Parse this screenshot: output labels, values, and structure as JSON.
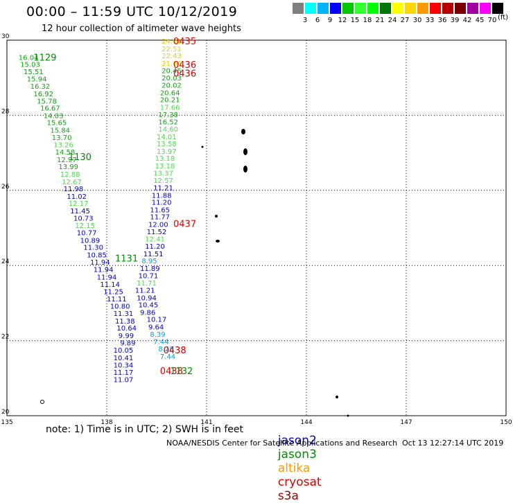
{
  "header": {
    "title": "00:00 – 11:59 UTC 10/12/2019",
    "subtitle": "12 hour collection of altimeter wave heights"
  },
  "scale": {
    "unit": "(ft)",
    "items": [
      {
        "color": "#7f7f7f",
        "label": ""
      },
      {
        "color": "#00ffff",
        "label": "3"
      },
      {
        "color": "#00b4ff",
        "label": "6"
      },
      {
        "color": "#0000ff",
        "label": "9"
      },
      {
        "color": "#00c800",
        "label": "12"
      },
      {
        "color": "#32ff32",
        "label": "15"
      },
      {
        "color": "#00ff00",
        "label": "18"
      },
      {
        "color": "#007800",
        "label": "21"
      },
      {
        "color": "#ffff00",
        "label": "24"
      },
      {
        "color": "#ffd700",
        "label": "27"
      },
      {
        "color": "#ff9900",
        "label": "30"
      },
      {
        "color": "#ff0000",
        "label": "33"
      },
      {
        "color": "#b40000",
        "label": "36"
      },
      {
        "color": "#780000",
        "label": "39"
      },
      {
        "color": "#a000a0",
        "label": "42"
      },
      {
        "color": "#ff00ff",
        "label": "45"
      },
      {
        "color": "#000000",
        "label": "70"
      }
    ]
  },
  "axes": {
    "x_ticks": [
      "135",
      "138",
      "141",
      "144",
      "147",
      "150"
    ],
    "y_ticks": [
      "30",
      "28",
      "26",
      "24",
      "22",
      "20"
    ],
    "x_range": [
      135,
      150
    ],
    "y_range": [
      20,
      30
    ]
  },
  "colors": {
    "jason2": "#0000c8",
    "jason3": "#008c00",
    "altika": "#ff9900",
    "cryosat": "#dc0000",
    "s3a": "#a00000",
    "green_dark": "#14a014",
    "green_light": "#50dc50",
    "yellow": "#e6d200",
    "cyan": "#00a0d2"
  },
  "chart_data": {
    "type": "scatter",
    "footer_note": "note: 1) Time is in UTC; 2) SWH is in feet",
    "legend": [
      "jason2",
      "jason3",
      "altika",
      "cryosat",
      "s3a"
    ],
    "time_labels": [
      {
        "text": "0435",
        "lon": 140.0,
        "lat": 29.98,
        "sat": "cryosat"
      },
      {
        "text": "0436",
        "lon": 140.0,
        "lat": 29.35,
        "sat": "cryosat"
      },
      {
        "text": "0436",
        "lon": 140.0,
        "lat": 29.12,
        "sat": "cryosat"
      },
      {
        "text": "0437",
        "lon": 140.0,
        "lat": 25.12,
        "sat": "cryosat"
      },
      {
        "text": "0438",
        "lon": 139.7,
        "lat": 21.75,
        "sat": "cryosat"
      },
      {
        "text": "0438",
        "lon": 139.6,
        "lat": 21.2,
        "sat": "cryosat"
      },
      {
        "text": "1129",
        "lon": 135.8,
        "lat": 29.55,
        "sat": "jason3"
      },
      {
        "text": "1130",
        "lon": 136.85,
        "lat": 26.9,
        "sat": "jason3"
      },
      {
        "text": "1131",
        "lon": 138.25,
        "lat": 24.2,
        "sat": "jason3"
      },
      {
        "text": "1132",
        "lon": 139.9,
        "lat": 21.2,
        "sat": "jason3"
      }
    ],
    "west_track": [
      {
        "v": "16.04",
        "c": "green_dark",
        "lon": 135.35,
        "lat": 29.55
      },
      {
        "v": "15.03",
        "c": "green_dark",
        "lon": 135.4,
        "lat": 29.36
      },
      {
        "v": "15.51",
        "c": "green_dark",
        "lon": 135.5,
        "lat": 29.17
      },
      {
        "v": "15.94",
        "c": "green_dark",
        "lon": 135.6,
        "lat": 28.98
      },
      {
        "v": "16.32",
        "c": "green_dark",
        "lon": 135.7,
        "lat": 28.78
      },
      {
        "v": "16.92",
        "c": "green_dark",
        "lon": 135.8,
        "lat": 28.58
      },
      {
        "v": "15.78",
        "c": "green_dark",
        "lon": 135.9,
        "lat": 28.39
      },
      {
        "v": "16.67",
        "c": "green_dark",
        "lon": 136.0,
        "lat": 28.2
      },
      {
        "v": "14.03",
        "c": "green_dark",
        "lon": 136.1,
        "lat": 28.0
      },
      {
        "v": "15.65",
        "c": "green_dark",
        "lon": 136.2,
        "lat": 27.81
      },
      {
        "v": "15.84",
        "c": "green_dark",
        "lon": 136.3,
        "lat": 27.61
      },
      {
        "v": "13.70",
        "c": "green_dark",
        "lon": 136.35,
        "lat": 27.42
      },
      {
        "v": "13.26",
        "c": "green_light",
        "lon": 136.4,
        "lat": 27.22
      },
      {
        "v": "14.58",
        "c": "green_dark",
        "lon": 136.45,
        "lat": 27.03
      },
      {
        "v": "12.97",
        "c": "green_dark",
        "lon": 136.5,
        "lat": 26.83
      },
      {
        "v": "13.99",
        "c": "green_dark",
        "lon": 136.55,
        "lat": 26.64
      },
      {
        "v": "12.88",
        "c": "green_light",
        "lon": 136.6,
        "lat": 26.44
      },
      {
        "v": "12.67",
        "c": "green_light",
        "lon": 136.65,
        "lat": 26.24
      },
      {
        "v": "11.98",
        "c": "jason2",
        "lon": 136.7,
        "lat": 26.05
      },
      {
        "v": "11.02",
        "c": "jason2",
        "lon": 136.8,
        "lat": 25.85
      },
      {
        "v": "12.17",
        "c": "green_light",
        "lon": 136.85,
        "lat": 25.66
      },
      {
        "v": "11.45",
        "c": "jason2",
        "lon": 136.9,
        "lat": 25.46
      },
      {
        "v": "10.73",
        "c": "jason2",
        "lon": 137.0,
        "lat": 25.27
      },
      {
        "v": "12.15",
        "c": "green_light",
        "lon": 137.05,
        "lat": 25.07
      },
      {
        "v": "10.77",
        "c": "jason2",
        "lon": 137.1,
        "lat": 24.88
      },
      {
        "v": "10.89",
        "c": "jason2",
        "lon": 137.2,
        "lat": 24.68
      },
      {
        "v": "11.30",
        "c": "jason2",
        "lon": 137.3,
        "lat": 24.49
      },
      {
        "v": "10.85",
        "c": "jason2",
        "lon": 137.4,
        "lat": 24.29
      },
      {
        "v": "11.94",
        "c": "jason2",
        "lon": 137.5,
        "lat": 24.1
      },
      {
        "v": "11.94",
        "c": "jason2",
        "lon": 137.6,
        "lat": 23.9
      },
      {
        "v": "11.94",
        "c": "jason2",
        "lon": 137.7,
        "lat": 23.7
      },
      {
        "v": "11.14",
        "c": "jason2",
        "lon": 137.8,
        "lat": 23.51
      },
      {
        "v": "11.25",
        "c": "jason2",
        "lon": 137.9,
        "lat": 23.31
      },
      {
        "v": "11.11",
        "c": "jason2",
        "lon": 138.0,
        "lat": 23.12
      },
      {
        "v": "10.80",
        "c": "jason2",
        "lon": 138.1,
        "lat": 22.92
      },
      {
        "v": "11.31",
        "c": "jason2",
        "lon": 138.2,
        "lat": 22.73
      },
      {
        "v": "11.38",
        "c": "jason2",
        "lon": 138.25,
        "lat": 22.53
      },
      {
        "v": "10.64",
        "c": "jason2",
        "lon": 138.3,
        "lat": 22.34
      },
      {
        "v": "9.99",
        "c": "jason2",
        "lon": 138.35,
        "lat": 22.14
      },
      {
        "v": "9.89",
        "c": "jason2",
        "lon": 138.4,
        "lat": 21.95
      },
      {
        "v": "10.05",
        "c": "jason2",
        "lon": 138.2,
        "lat": 21.75
      },
      {
        "v": "10.41",
        "c": "jason2",
        "lon": 138.2,
        "lat": 21.55
      },
      {
        "v": "10.34",
        "c": "jason2",
        "lon": 138.2,
        "lat": 21.36
      },
      {
        "v": "11.17",
        "c": "jason2",
        "lon": 138.2,
        "lat": 21.16
      },
      {
        "v": "11.07",
        "c": "jason2",
        "lon": 138.2,
        "lat": 20.97
      }
    ],
    "east_track": [
      {
        "v": "24.02",
        "c": "yellow",
        "lon": 139.65,
        "lat": 29.98
      },
      {
        "v": "22.51",
        "c": "yellow",
        "lon": 139.65,
        "lat": 29.78
      },
      {
        "v": "22.43",
        "c": "yellow",
        "lon": 139.65,
        "lat": 29.59
      },
      {
        "v": "21.66",
        "c": "yellow",
        "lon": 139.65,
        "lat": 29.39
      },
      {
        "v": "20.45",
        "c": "green_dark",
        "lon": 139.65,
        "lat": 29.2
      },
      {
        "v": "20.03",
        "c": "green_dark",
        "lon": 139.65,
        "lat": 29.0
      },
      {
        "v": "20.02",
        "c": "green_dark",
        "lon": 139.65,
        "lat": 28.81
      },
      {
        "v": "20.64",
        "c": "green_dark",
        "lon": 139.6,
        "lat": 28.61
      },
      {
        "v": "20.21",
        "c": "green_dark",
        "lon": 139.6,
        "lat": 28.42
      },
      {
        "v": "17.66",
        "c": "green_light",
        "lon": 139.6,
        "lat": 28.22
      },
      {
        "v": "17.38",
        "c": "green_dark",
        "lon": 139.55,
        "lat": 28.03
      },
      {
        "v": "16.52",
        "c": "green_dark",
        "lon": 139.55,
        "lat": 27.83
      },
      {
        "v": "14.60",
        "c": "green_light",
        "lon": 139.55,
        "lat": 27.64
      },
      {
        "v": "14.01",
        "c": "green_light",
        "lon": 139.5,
        "lat": 27.44
      },
      {
        "v": "13.58",
        "c": "green_light",
        "lon": 139.5,
        "lat": 27.25
      },
      {
        "v": "13.97",
        "c": "green_light",
        "lon": 139.5,
        "lat": 27.05
      },
      {
        "v": "13.18",
        "c": "green_light",
        "lon": 139.45,
        "lat": 26.86
      },
      {
        "v": "13.18",
        "c": "green_light",
        "lon": 139.45,
        "lat": 26.66
      },
      {
        "v": "13.37",
        "c": "green_light",
        "lon": 139.4,
        "lat": 26.47
      },
      {
        "v": "12.57",
        "c": "green_light",
        "lon": 139.4,
        "lat": 26.27
      },
      {
        "v": "11.21",
        "c": "jason2",
        "lon": 139.4,
        "lat": 26.08
      },
      {
        "v": "11.88",
        "c": "jason2",
        "lon": 139.35,
        "lat": 25.88
      },
      {
        "v": "11.20",
        "c": "jason2",
        "lon": 139.35,
        "lat": 25.69
      },
      {
        "v": "11.65",
        "c": "jason2",
        "lon": 139.3,
        "lat": 25.49
      },
      {
        "v": "11.77",
        "c": "jason2",
        "lon": 139.3,
        "lat": 25.3
      },
      {
        "v": "12.00",
        "c": "jason2",
        "lon": 139.25,
        "lat": 25.1
      },
      {
        "v": "11.52",
        "c": "jason2",
        "lon": 139.2,
        "lat": 24.91
      },
      {
        "v": "12.41",
        "c": "green_light",
        "lon": 139.15,
        "lat": 24.71
      },
      {
        "v": "11.20",
        "c": "jason2",
        "lon": 139.15,
        "lat": 24.52
      },
      {
        "v": "11.51",
        "c": "jason2",
        "lon": 139.1,
        "lat": 24.32
      },
      {
        "v": "8.95",
        "c": "cyan",
        "lon": 139.05,
        "lat": 24.13
      },
      {
        "v": "11.89",
        "c": "jason2",
        "lon": 139.0,
        "lat": 23.93
      },
      {
        "v": "10.71",
        "c": "jason2",
        "lon": 138.95,
        "lat": 23.74
      },
      {
        "v": "11.71",
        "c": "green_light",
        "lon": 138.9,
        "lat": 23.54
      },
      {
        "v": "11.21",
        "c": "jason2",
        "lon": 138.85,
        "lat": 23.35
      },
      {
        "v": "10.94",
        "c": "jason2",
        "lon": 138.9,
        "lat": 23.15
      },
      {
        "v": "10.45",
        "c": "jason2",
        "lon": 138.95,
        "lat": 22.96
      },
      {
        "v": "9.86",
        "c": "jason2",
        "lon": 139.0,
        "lat": 22.76
      },
      {
        "v": "10.17",
        "c": "jason2",
        "lon": 139.2,
        "lat": 22.57
      },
      {
        "v": "9.64",
        "c": "jason2",
        "lon": 139.25,
        "lat": 22.37
      },
      {
        "v": "8.39",
        "c": "cyan",
        "lon": 139.3,
        "lat": 22.18
      },
      {
        "v": "7.44",
        "c": "cyan",
        "lon": 139.4,
        "lat": 21.98
      },
      {
        "v": "8.28",
        "c": "cyan",
        "lon": 139.55,
        "lat": 21.79
      },
      {
        "v": "7.44",
        "c": "cyan",
        "lon": 139.6,
        "lat": 21.59
      }
    ]
  },
  "footer": {
    "credit": "NOAA/NESDIS Center for Satellite Applications and Research",
    "timestamp": "Oct 13 12:27:14 UTC 2019"
  }
}
